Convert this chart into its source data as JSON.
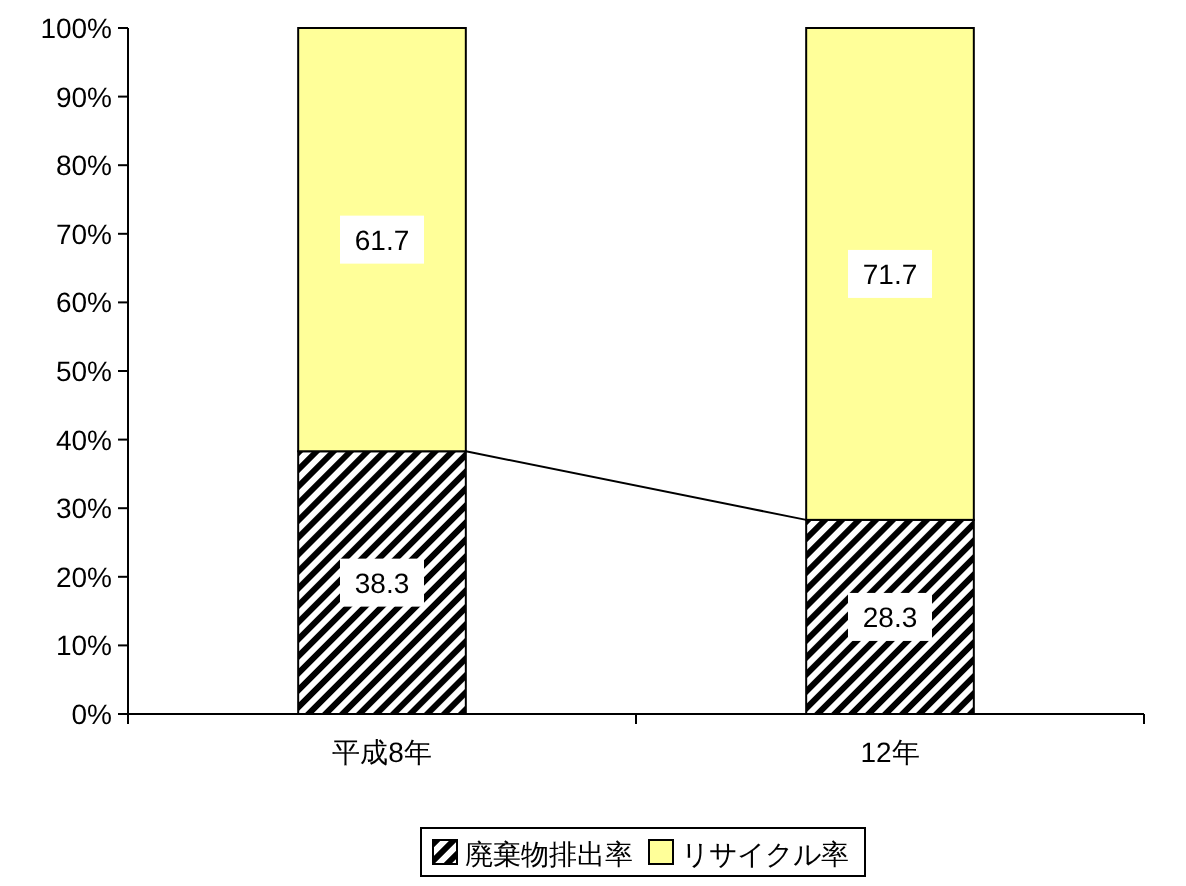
{
  "chart_data": {
    "type": "bar",
    "stacked": true,
    "categories": [
      "平成8年",
      "12年"
    ],
    "series": [
      {
        "name": "廃棄物排出率",
        "color": "#000000",
        "values": [
          38.3,
          28.3
        ]
      },
      {
        "name": "リサイクル率",
        "color": "#ffff99",
        "values": [
          61.7,
          71.7
        ]
      }
    ],
    "ylim": [
      0,
      100
    ],
    "yticks": [
      {
        "value": 0,
        "label": "0%"
      },
      {
        "value": 10,
        "label": "10%"
      },
      {
        "value": 20,
        "label": "20%"
      },
      {
        "value": 30,
        "label": "30%"
      },
      {
        "value": 40,
        "label": "40%"
      },
      {
        "value": 50,
        "label": "50%"
      },
      {
        "value": 60,
        "label": "60%"
      },
      {
        "value": 70,
        "label": "70%"
      },
      {
        "value": 80,
        "label": "80%"
      },
      {
        "value": 90,
        "label": "90%"
      },
      {
        "value": 100,
        "label": "100%"
      }
    ],
    "data_labels": true,
    "legend": "bottom",
    "grid": false
  }
}
